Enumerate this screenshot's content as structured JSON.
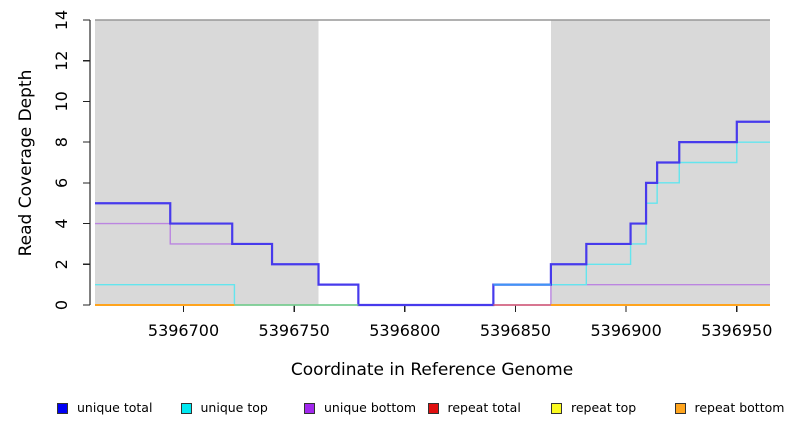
{
  "chart_data": {
    "type": "line",
    "subtype": "step-coverage",
    "title": "",
    "xlabel": "Coordinate in Reference Genome",
    "ylabel": "Read Coverage Depth",
    "xlim": [
      5396660,
      5396965
    ],
    "ylim": [
      0,
      14
    ],
    "x_ticks": [
      5396700,
      5396750,
      5396800,
      5396850,
      5396900,
      5396950
    ],
    "y_ticks": [
      0,
      2,
      4,
      6,
      8,
      10,
      12,
      14
    ],
    "grid": false,
    "legend_position": "bottom",
    "depth_cap_line": {
      "y": 14,
      "color": "#979797"
    },
    "shaded_regions": [
      {
        "name": "repeat-region-left",
        "x0": 5396660,
        "x1": 5396761,
        "color": "#D9D9D9"
      },
      {
        "name": "repeat-region-right",
        "x0": 5396866,
        "x1": 5396965,
        "color": "#D9D9D9"
      }
    ],
    "series": [
      {
        "name": "unique bottom",
        "draw": true,
        "color": "#BB85E0",
        "width": 1.4,
        "steps": [
          [
            5396660,
            4
          ],
          [
            5396694,
            3
          ],
          [
            5396740,
            2
          ],
          [
            5396761,
            1
          ],
          [
            5396779,
            0
          ],
          [
            5396866,
            1
          ],
          [
            5396965,
            1
          ]
        ]
      },
      {
        "name": "unique top",
        "draw": true,
        "color": "#63E5EE",
        "width": 1.4,
        "steps": [
          [
            5396660,
            1
          ],
          [
            5396723,
            0
          ],
          [
            5396840,
            1
          ],
          [
            5396882,
            2
          ],
          [
            5396902,
            3
          ],
          [
            5396909,
            5
          ],
          [
            5396914,
            6
          ],
          [
            5396924,
            7
          ],
          [
            5396950,
            8
          ],
          [
            5396965,
            8
          ]
        ]
      },
      {
        "name": "unique total",
        "draw": true,
        "color": "#473AEC",
        "width": 2.2,
        "steps": [
          [
            5396660,
            5
          ],
          [
            5396694,
            4
          ],
          [
            5396722,
            3
          ],
          [
            5396740,
            2
          ],
          [
            5396761,
            1
          ],
          [
            5396779,
            0
          ],
          [
            5396840,
            1
          ],
          [
            5396866,
            2
          ],
          [
            5396882,
            3
          ],
          [
            5396902,
            4
          ],
          [
            5396909,
            6
          ],
          [
            5396914,
            7
          ],
          [
            5396924,
            8
          ],
          [
            5396950,
            9
          ],
          [
            5396965,
            9
          ]
        ]
      },
      {
        "name": "repeat total",
        "draw": false,
        "color": "#D65C72",
        "width": 1.4,
        "steps": [
          [
            5396840,
            0
          ],
          [
            5396866,
            0
          ]
        ]
      },
      {
        "name": "repeat top",
        "draw": false,
        "color": "#FFFF00",
        "width": 1.4,
        "steps": [
          [
            5396723,
            0
          ],
          [
            5396779,
            0
          ]
        ]
      },
      {
        "name": "repeat bottom",
        "draw": false,
        "color": "#FFA41E",
        "width": 2,
        "steps": [
          [
            5396660,
            0
          ],
          [
            5396723,
            0
          ],
          [
            5396866,
            0
          ],
          [
            5396965,
            0
          ]
        ]
      }
    ],
    "overlay_segments": [
      {
        "name": "repeat-bottom-left-zero",
        "color": "#FFA41E",
        "width": 2.0,
        "y": 0,
        "x0": 5396660,
        "x1": 5396723
      },
      {
        "name": "unique-top-over-repeat-zero",
        "color": "#7CC882",
        "width": 1.5,
        "y": 0,
        "x0": 5396723,
        "x1": 5396779
      },
      {
        "name": "repeat-total-zero",
        "color": "#D65C72",
        "width": 1.5,
        "y": 0,
        "x0": 5396840,
        "x1": 5396866
      },
      {
        "name": "unique-total-top-overlap",
        "color": "#3E95F5",
        "width": 2.0,
        "y": 1,
        "x0": 5396840,
        "x1": 5396866
      },
      {
        "name": "repeat-bottom-right-zero",
        "color": "#FFA41E",
        "width": 2.0,
        "y": 0,
        "x0": 5396866,
        "x1": 5396965
      }
    ],
    "legend": [
      {
        "label": "unique total",
        "color": "#0000F5"
      },
      {
        "label": "unique top",
        "color": "#00E8F0"
      },
      {
        "label": "unique bottom",
        "color": "#A228EE"
      },
      {
        "label": "repeat total",
        "color": "#E01010"
      },
      {
        "label": "repeat top",
        "color": "#FAFA20"
      },
      {
        "label": "repeat bottom",
        "color": "#FFA51E"
      }
    ]
  }
}
